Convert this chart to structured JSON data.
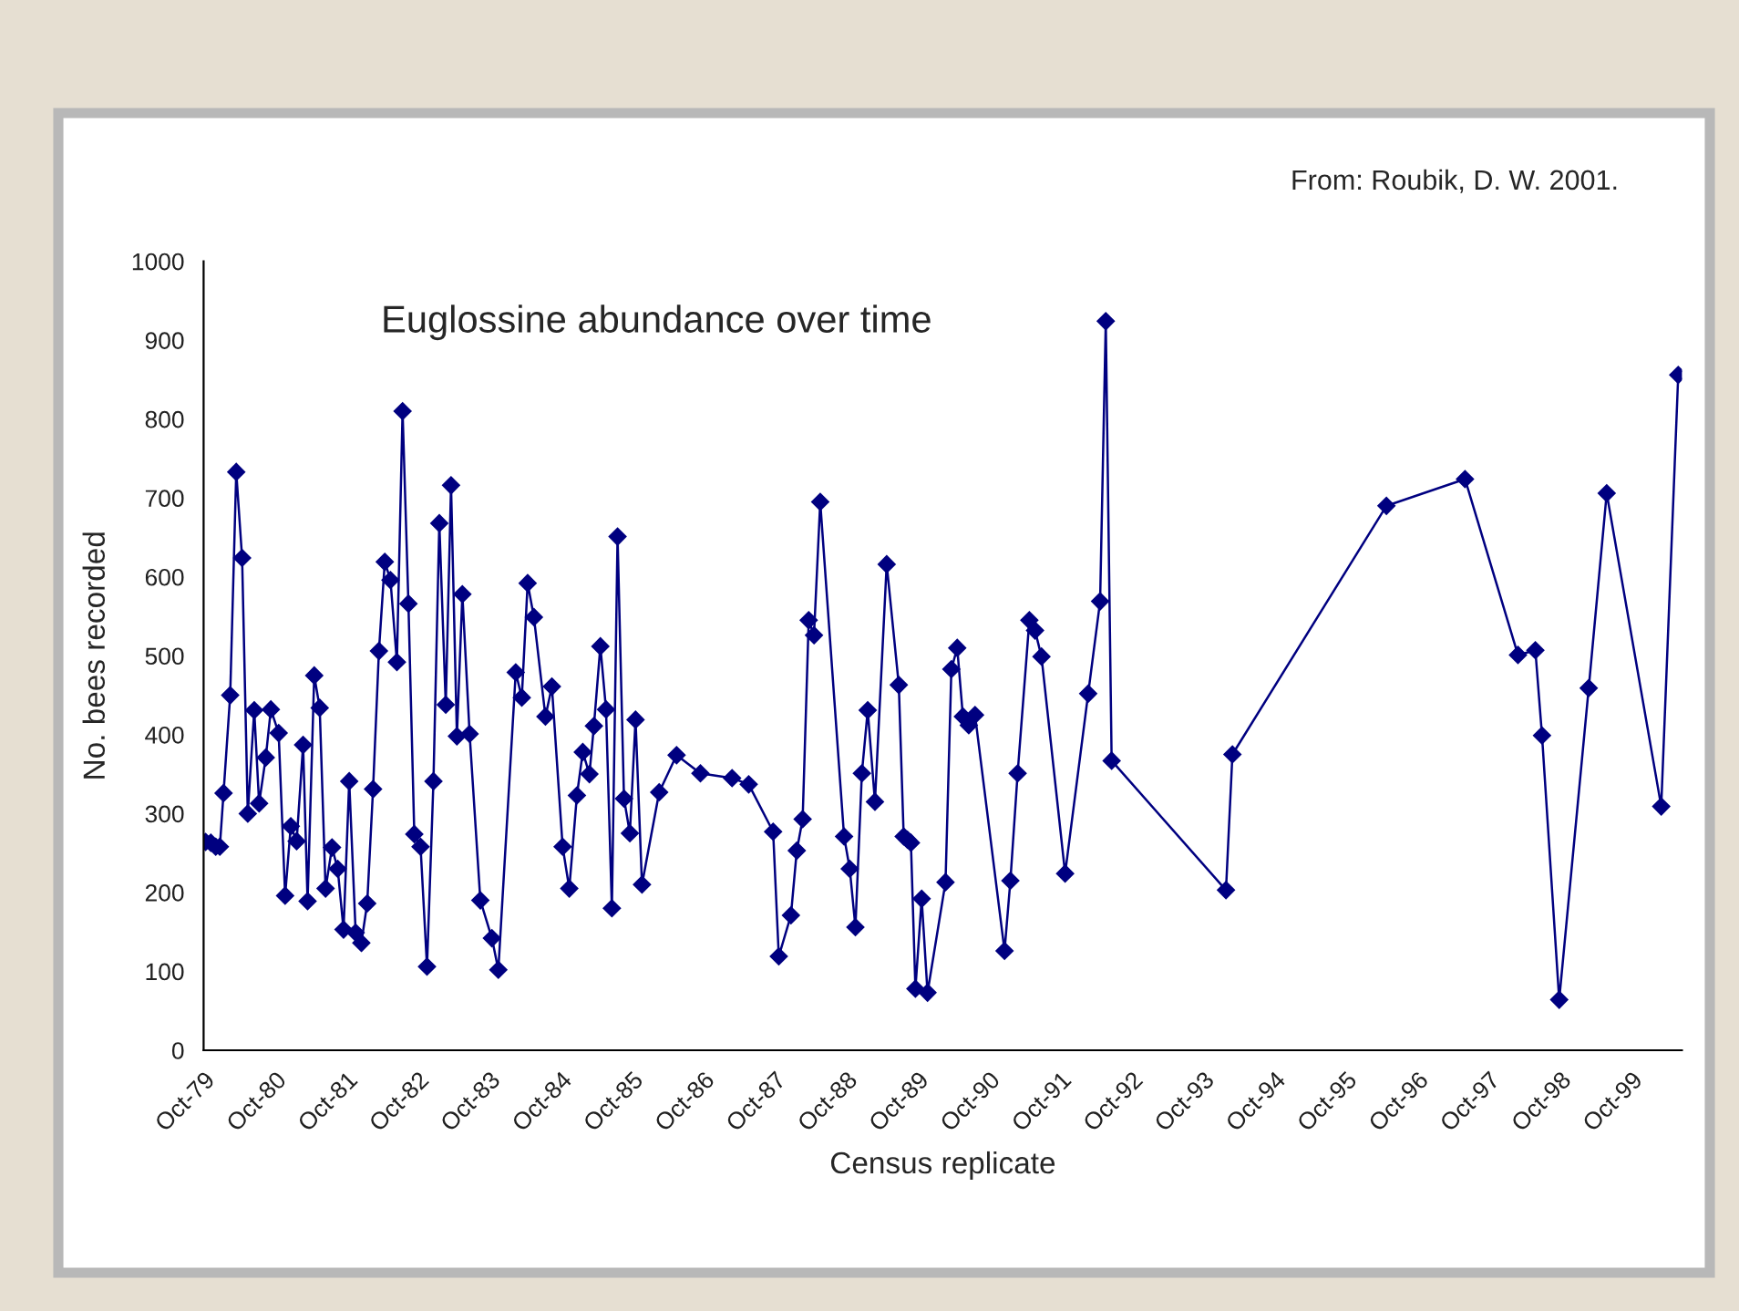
{
  "chart_data": {
    "type": "line",
    "title": "Euglossine abundance over time",
    "xlabel": "Census replicate",
    "ylabel": "No. bees recorded",
    "annotations": [
      "From: Roubik, D. W. 2001."
    ],
    "series": [
      {
        "color": "#000080",
        "x": [
          "1979-10-11",
          "1979-11-07",
          "1979-12-02",
          "1979-12-23",
          "1980-01-11",
          "1980-02-14",
          "1980-03-16",
          "1980-04-15",
          "1980-05-14",
          "1980-06-16",
          "1980-07-11",
          "1980-08-14",
          "1980-09-09",
          "1980-10-19",
          "1980-11-21",
          "1980-12-20",
          "1981-01-19",
          "1981-02-21",
          "1981-03-16",
          "1981-04-19",
          "1981-05-17",
          "1981-06-16",
          "1981-07-19",
          "1981-08-17",
          "1981-09-16",
          "1981-10-15",
          "1981-11-17",
          "1981-12-16",
          "1982-01-15",
          "1982-02-14",
          "1982-03-16",
          "1982-04-15",
          "1982-05-14",
          "1982-06-16",
          "1982-07-15",
          "1982-08-14",
          "1982-09-13",
          "1982-10-15",
          "1982-11-17",
          "1982-12-20",
          "1983-01-19",
          "1983-02-21",
          "1983-03-20",
          "1983-04-19",
          "1983-05-17",
          "1983-06-23",
          "1983-08-17",
          "1983-10-15",
          "1983-11-17",
          "1984-02-14",
          "1984-03-16",
          "1984-04-15",
          "1984-05-17",
          "1984-07-15",
          "1984-08-17",
          "1984-10-11",
          "1984-11-14",
          "1984-12-23",
          "1985-01-22",
          "1985-02-25",
          "1985-03-20",
          "1985-04-22",
          "1985-05-21",
          "1985-06-20",
          "1985-07-19",
          "1985-08-21",
          "1985-09-20",
          "1985-10-19",
          "1985-11-21",
          "1986-02-17",
          "1986-05-17",
          "1986-09-16",
          "1987-02-25",
          "1987-05-21",
          "1987-09-23",
          "1987-10-22",
          "1987-12-23",
          "1988-01-22",
          "1988-02-21",
          "1988-03-23",
          "1988-04-19",
          "1988-05-21",
          "1988-09-20",
          "1988-10-19",
          "1988-11-17",
          "1988-12-20",
          "1989-01-19",
          "1989-02-25",
          "1989-04-26",
          "1989-06-27",
          "1989-07-22",
          "1989-08-10",
          "1989-08-28",
          "1989-09-20",
          "1989-10-22",
          "1989-11-21",
          "1990-02-21",
          "1990-03-23",
          "1990-04-22",
          "1990-05-21",
          "1990-06-20",
          "1990-07-22",
          "1990-12-20",
          "1991-01-19",
          "1991-02-25",
          "1991-04-26",
          "1991-05-25",
          "1991-06-27",
          "1991-10-26",
          "1992-02-21",
          "1992-04-22",
          "1992-05-21",
          "1992-06-20",
          "1994-01-26",
          "1994-02-28",
          "1996-04-26",
          "1997-06-02",
          "1998-02-28",
          "1998-05-28",
          "1998-07-01",
          "1998-09-27",
          "1999-02-25",
          "1999-05-28",
          "2000-03-02",
          "2000-05-28"
        ],
        "values": [
          264,
          263,
          258,
          258,
          326,
          450,
          733,
          624,
          300,
          431,
          313,
          371,
          432,
          402,
          196,
          284,
          265,
          387,
          189,
          475,
          434,
          205,
          257,
          230,
          153,
          341,
          149,
          136,
          186,
          331,
          506,
          619,
          596,
          492,
          810,
          566,
          274,
          258,
          106,
          341,
          668,
          438,
          716,
          398,
          578,
          401,
          190,
          142,
          102,
          479,
          447,
          592,
          549,
          423,
          461,
          258,
          205,
          323,
          378,
          350,
          411,
          512,
          432,
          180,
          651,
          319,
          275,
          419,
          210,
          327,
          374,
          351,
          345,
          337,
          277,
          119,
          171,
          253,
          293,
          545,
          526,
          695,
          271,
          230,
          156,
          351,
          431,
          315,
          616,
          463,
          271,
          267,
          263,
          78,
          192,
          73,
          213,
          483,
          510,
          423,
          412,
          425,
          126,
          215,
          351,
          545,
          532,
          499,
          224,
          452,
          569,
          924,
          367,
          203,
          375,
          690,
          724,
          501,
          507,
          399,
          64,
          459,
          706,
          309,
          856
        ]
      }
    ],
    "xlim": [
      "1979-10-01",
      "2000-06-16"
    ],
    "xticks": [
      {
        "value": "1979-10-01",
        "label": "Oct-79"
      },
      {
        "value": "1980-10-01",
        "label": "Oct-80"
      },
      {
        "value": "1981-10-01",
        "label": "Oct-81"
      },
      {
        "value": "1982-10-01",
        "label": "Oct-82"
      },
      {
        "value": "1983-10-01",
        "label": "Oct-83"
      },
      {
        "value": "1984-10-01",
        "label": "Oct-84"
      },
      {
        "value": "1985-10-01",
        "label": "Oct-85"
      },
      {
        "value": "1986-10-01",
        "label": "Oct-86"
      },
      {
        "value": "1987-10-01",
        "label": "Oct-87"
      },
      {
        "value": "1988-10-01",
        "label": "Oct-88"
      },
      {
        "value": "1989-10-01",
        "label": "Oct-89"
      },
      {
        "value": "1990-10-01",
        "label": "Oct-90"
      },
      {
        "value": "1991-10-01",
        "label": "Oct-91"
      },
      {
        "value": "1992-10-01",
        "label": "Oct-92"
      },
      {
        "value": "1993-10-01",
        "label": "Oct-93"
      },
      {
        "value": "1994-10-01",
        "label": "Oct-94"
      },
      {
        "value": "1995-10-01",
        "label": "Oct-95"
      },
      {
        "value": "1996-10-01",
        "label": "Oct-96"
      },
      {
        "value": "1997-10-01",
        "label": "Oct-97"
      },
      {
        "value": "1998-10-01",
        "label": "Oct-98"
      },
      {
        "value": "1999-10-01",
        "label": "Oct-99"
      }
    ],
    "ylim": [
      0,
      1000
    ],
    "yticks": [
      0,
      100,
      200,
      300,
      400,
      500,
      600,
      700,
      800,
      900,
      1000
    ],
    "grid": false,
    "legend": false,
    "marker": "diamond",
    "line_style": "solid"
  }
}
